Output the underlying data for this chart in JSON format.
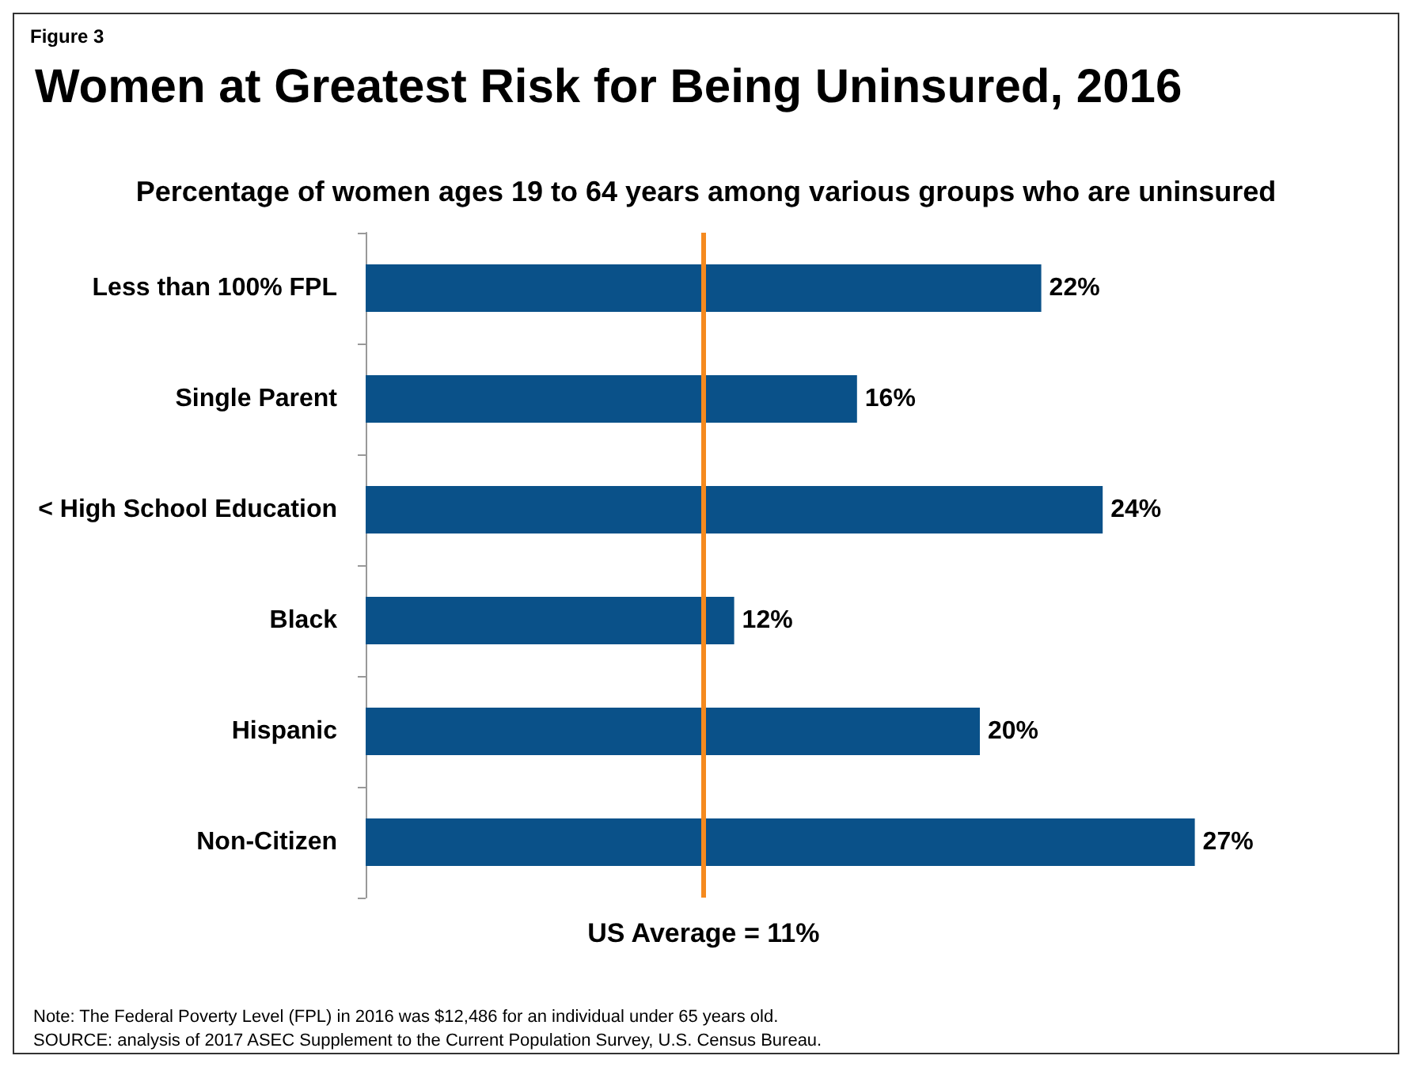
{
  "chart_data": {
    "type": "bar",
    "orientation": "horizontal",
    "title": "Women at Greatest Risk for Being Uninsured, 2016",
    "subtitle": "Percentage of women ages 19 to 64 years among various groups who are uninsured",
    "categories": [
      "Less than 100% FPL",
      "Single Parent",
      "< High School Education",
      "Black",
      "Hispanic",
      "Non-Citizen"
    ],
    "values": [
      22,
      16,
      24,
      12,
      20,
      27
    ],
    "color": "#0a5189",
    "value_labels": [
      "22%",
      "16%",
      "24%",
      "12%",
      "20%",
      "27%"
    ],
    "ref_lines": [
      {
        "axis": "x",
        "value": 11,
        "label": "US Average = 11%",
        "color": "#f58a1f"
      }
    ],
    "annotations": [
      "Figure 3",
      "Note: The Federal Poverty Level (FPL) in 2016 was $12,486 for an individual under 65 years old.",
      "SOURCE: analysis of 2017 ASEC Supplement to the Current Population Survey, U.S. Census Bureau."
    ]
  }
}
